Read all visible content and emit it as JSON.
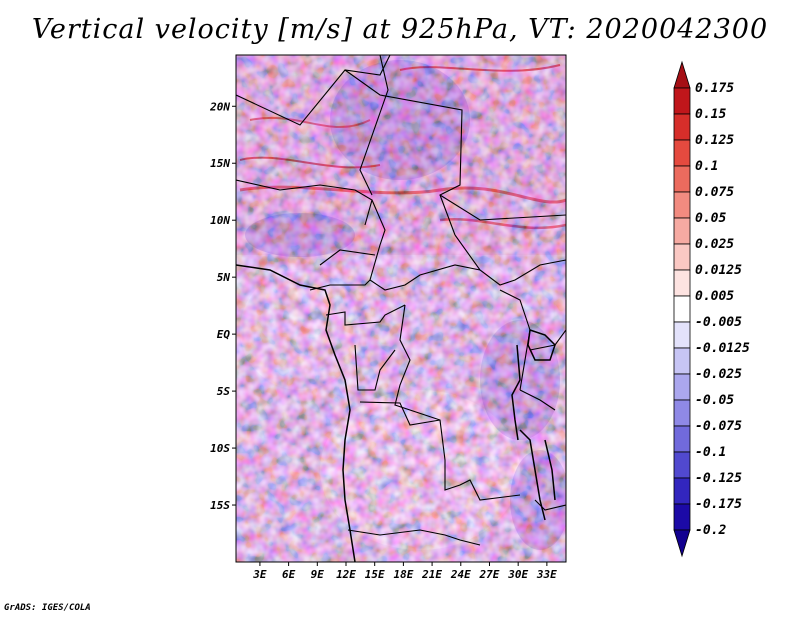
{
  "title": "Vertical velocity [m/s] at 925hPa, VT: 2020042300",
  "footer": "GrADS: IGES/COLA",
  "map": {
    "lat_labels": [
      "20N",
      "15N",
      "10N",
      "5N",
      "EQ",
      "5S",
      "10S",
      "15S"
    ],
    "lat_values": [
      20,
      15,
      10,
      5,
      0,
      -5,
      -10,
      -15
    ],
    "lon_labels": [
      "3E",
      "6E",
      "9E",
      "12E",
      "15E",
      "18E",
      "21E",
      "24E",
      "27E",
      "30E",
      "33E"
    ],
    "lon_values": [
      3,
      6,
      9,
      12,
      15,
      18,
      21,
      24,
      27,
      30,
      33
    ],
    "lon_range": [
      0.5,
      35
    ],
    "lat_range": [
      -20,
      24.5
    ]
  },
  "colorbar": {
    "labels": [
      "0.175",
      "0.15",
      "0.125",
      "0.1",
      "0.075",
      "0.05",
      "0.025",
      "0.0125",
      "0.005",
      "-0.005",
      "-0.0125",
      "-0.025",
      "-0.05",
      "-0.075",
      "-0.1",
      "-0.125",
      "-0.175",
      "-0.2"
    ],
    "colors": [
      "#a50f15",
      "#c0161b",
      "#d62e2a",
      "#e54a3f",
      "#ec6b5e",
      "#f28b80",
      "#f6aaa2",
      "#fac8c3",
      "#fde3e1",
      "#ffffff",
      "#e3e2fb",
      "#c7c5f5",
      "#aba7ee",
      "#8f89e6",
      "#716adc",
      "#5149cf",
      "#3226be",
      "#1c0aa6",
      "#120090"
    ]
  }
}
